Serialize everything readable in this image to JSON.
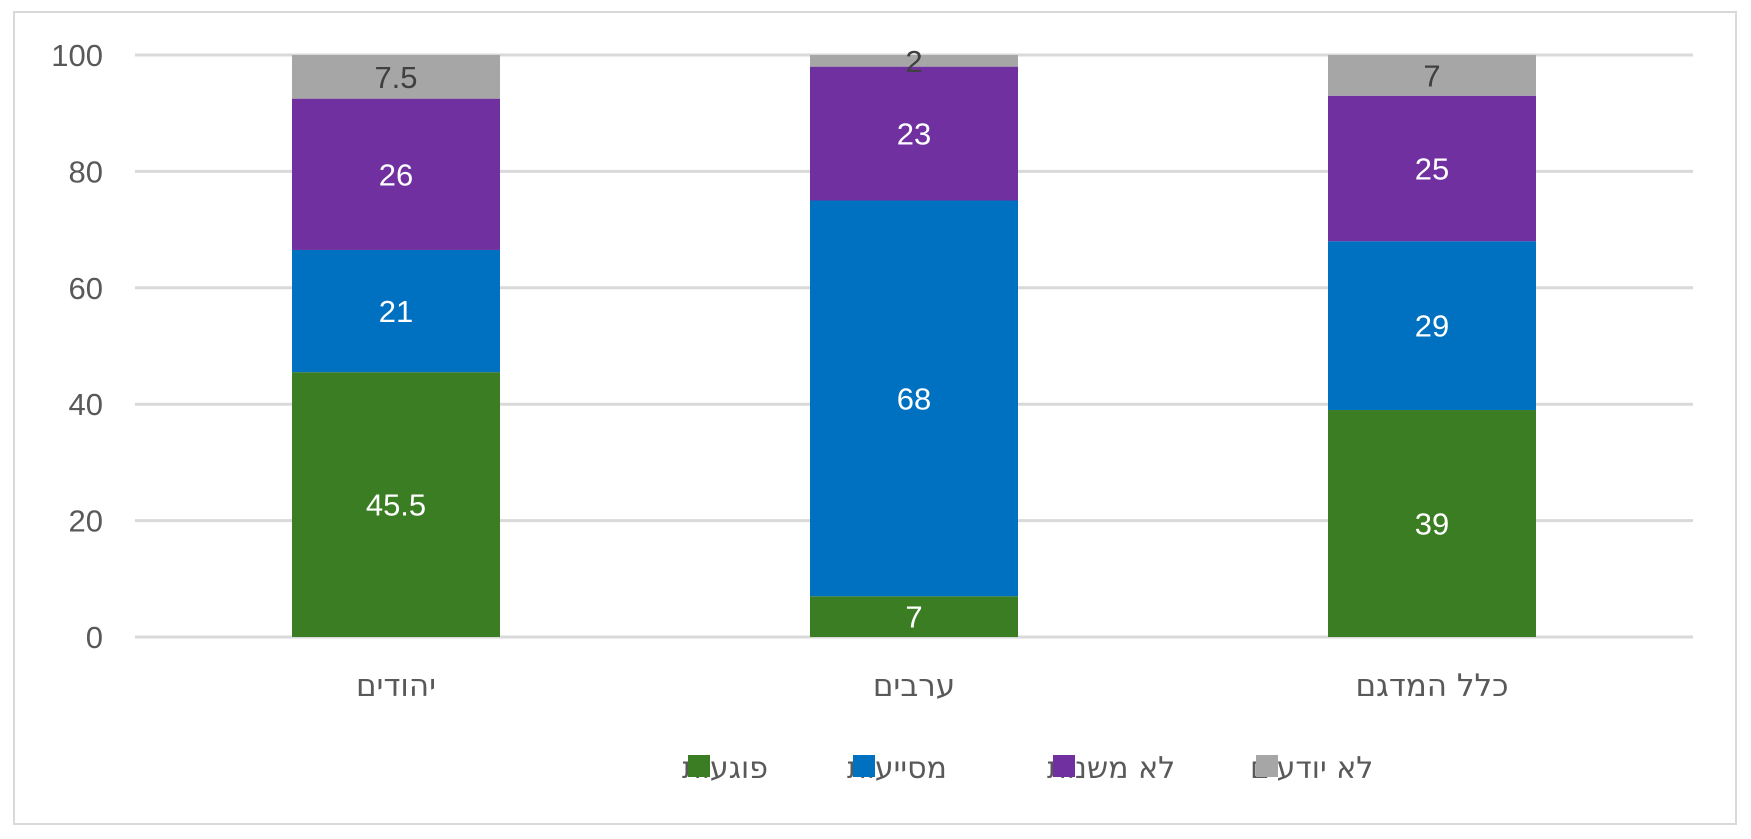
{
  "chart_data": {
    "type": "bar",
    "stacked": true,
    "categories": [
      "יהודים",
      "ערבים",
      "כלל המדגם"
    ],
    "series": [
      {
        "name": "פוגעות",
        "color": "#3b7d23",
        "label_color": "#ffffff",
        "values": [
          45.5,
          7,
          39
        ]
      },
      {
        "name": "מסייעות",
        "color": "#0070c0",
        "label_color": "#ffffff",
        "values": [
          21,
          68,
          29
        ]
      },
      {
        "name": "לא משנות",
        "color": "#7030a0",
        "label_color": "#ffffff",
        "values": [
          26,
          23,
          25
        ]
      },
      {
        "name": "לא יודעים",
        "color": "#a6a6a6",
        "label_color": "#404040",
        "values": [
          7.5,
          2,
          7
        ]
      }
    ],
    "ylim": [
      0,
      100
    ],
    "yticks": [
      0,
      20,
      40,
      60,
      80,
      100
    ],
    "grid": true,
    "legend_position": "bottom",
    "title": "",
    "xlabel": "",
    "ylabel": ""
  }
}
